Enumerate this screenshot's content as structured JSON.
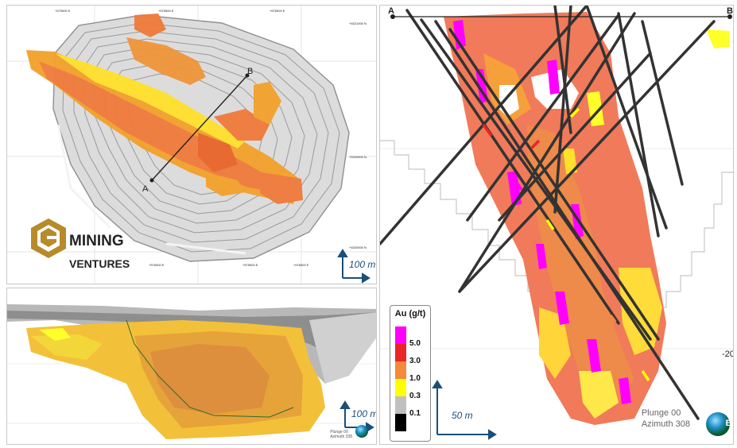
{
  "plan": {
    "label_a": "A",
    "label_b": "B",
    "coords_top": [
      "+575000 E",
      "+575500 E",
      "+576000 E"
    ],
    "coords_right": [
      "+5321000 N",
      "+5320500 N",
      "+5320000 N"
    ],
    "coords_bottom": [
      "+575000 E",
      "+575500 E",
      "+576000 E"
    ],
    "scale_label": "100 m",
    "logo_line1": "MINING",
    "logo_line2": "VENTURES"
  },
  "long_section": {
    "scale_label": "100 m",
    "plunge_text": "Plunge 00",
    "azimuth_text": "Azimuth 338"
  },
  "cross_section": {
    "label_a": "A",
    "label_b": "B",
    "elevation_tick": "-20",
    "scale_label": "50 m",
    "plunge_text": "Plunge 00",
    "azimuth_text": "Azimuth 308",
    "globe_letter": "E"
  },
  "legend": {
    "title": "Au (g/t)",
    "items": [
      {
        "label": "5.0",
        "color": "#ff00ff"
      },
      {
        "label": "3.0",
        "color": "#e8262a"
      },
      {
        "label": "1.0",
        "color": "#f48a3a"
      },
      {
        "label": "0.3",
        "color": "#ffff00"
      },
      {
        "label": "0.1",
        "color": "#c0c0c0"
      },
      {
        "label": "",
        "color": "#000000"
      }
    ]
  },
  "colors": {
    "magenta": "#ff00ff",
    "red": "#e8262a",
    "orange": "#f48a3a",
    "salmon": "#f07060",
    "yellow": "#ffff00",
    "grey": "#c0c0c0",
    "drill": "#333333",
    "scale_arrow": "#1a4f7a"
  },
  "icons": [
    "logo-cube-icon",
    "globe-icon",
    "north-arrow-icon"
  ]
}
